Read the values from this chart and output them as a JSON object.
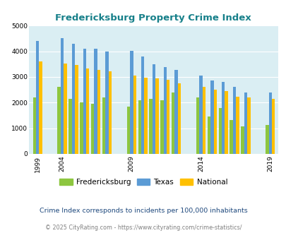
{
  "title": "Fredericksburg Property Crime Index",
  "subtitle": "Crime Index corresponds to incidents per 100,000 inhabitants",
  "footer": "© 2025 CityRating.com - https://www.cityrating.com/crime-statistics/",
  "fredericksburg": [
    2200,
    2600,
    2150,
    2000,
    1950,
    2200,
    1850,
    2100,
    2150,
    2100,
    2400,
    2200,
    1450,
    1780,
    1320,
    1060,
    1130
  ],
  "texas": [
    4400,
    4500,
    4300,
    4100,
    4100,
    4000,
    4020,
    3800,
    3490,
    3380,
    3260,
    3050,
    2850,
    2800,
    2600,
    2390,
    2400
  ],
  "national": [
    3600,
    3510,
    3460,
    3340,
    3260,
    3210,
    3040,
    2960,
    2930,
    2890,
    2760,
    2620,
    2490,
    2460,
    2230,
    2210,
    2140
  ],
  "x_positions": [
    0,
    2.2,
    3.2,
    4.2,
    5.2,
    6.2,
    8.4,
    9.4,
    10.4,
    11.4,
    12.4,
    14.6,
    15.6,
    16.6,
    17.6,
    18.6,
    20.8
  ],
  "tick_positions": [
    0,
    2.2,
    8.4,
    14.6,
    20.8
  ],
  "tick_labels": [
    "1999",
    "2004",
    "2009",
    "2014",
    "2019"
  ],
  "color_fredericksburg": "#8dc63f",
  "color_texas": "#5b9bd5",
  "color_national": "#ffc000",
  "bg_color": "#daeef3",
  "title_color": "#17808a",
  "subtitle_color": "#1f497d",
  "footer_color": "#808080",
  "ylim": [
    0,
    5000
  ],
  "yticks": [
    0,
    1000,
    2000,
    3000,
    4000,
    5000
  ],
  "bar_width": 0.28
}
